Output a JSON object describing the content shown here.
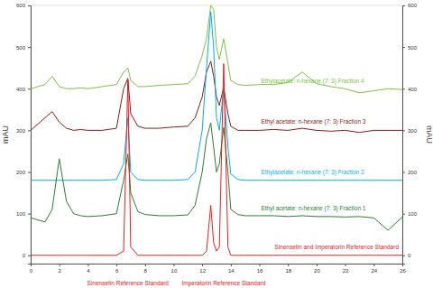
{
  "chart_data": {
    "type": "line",
    "y_label": "mAU",
    "y2_label": "mAU",
    "x": [
      0,
      1,
      1.5,
      2,
      2.5,
      3,
      3.5,
      4,
      5,
      6,
      6.5,
      6.8,
      7,
      7.5,
      8,
      9,
      10,
      11,
      11.5,
      12,
      12.3,
      12.6,
      12.8,
      13,
      13.2,
      13.5,
      13.8,
      14,
      14.5,
      15,
      16,
      17,
      18,
      19,
      20,
      21,
      22,
      23,
      24,
      25,
      26
    ],
    "xlim": [
      0,
      26
    ],
    "xticks": [
      0,
      2,
      4,
      6,
      8,
      10,
      12,
      14,
      16,
      18,
      20,
      22,
      24,
      26
    ],
    "ylim": [
      -20,
      600
    ],
    "yticks": [
      0,
      100,
      200,
      300,
      400,
      500,
      600
    ],
    "y2lim": [
      -20,
      600
    ],
    "y2ticks": [
      0,
      100,
      200,
      300,
      400,
      500,
      600
    ],
    "series": [
      {
        "name": "Ethylacetate: n-hexane (7: 3) Fraction 4",
        "color": "#7dc242",
        "values": [
          400,
          410,
          430,
          405,
          400,
          400,
          402,
          400,
          405,
          410,
          440,
          450,
          420,
          405,
          405,
          408,
          410,
          412,
          430,
          480,
          520,
          600,
          590,
          500,
          470,
          520,
          460,
          420,
          410,
          408,
          410,
          410,
          415,
          440,
          412,
          405,
          400,
          390,
          395,
          400,
          398
        ]
      },
      {
        "name": "Ethyl acetate: n-hexane (7: 3) Fraction 3",
        "color": "#8b1a1a",
        "values": [
          300,
          330,
          345,
          320,
          305,
          300,
          302,
          300,
          300,
          305,
          400,
          425,
          340,
          310,
          305,
          305,
          308,
          310,
          330,
          380,
          440,
          466,
          430,
          380,
          360,
          403,
          340,
          310,
          300,
          300,
          300,
          302,
          300,
          305,
          300,
          298,
          300,
          295,
          300,
          300,
          300
        ]
      },
      {
        "name": "Ethylacetate: n-hexane (7: 3) Fraction 2",
        "color": "#00aeef",
        "values": [
          180,
          180,
          180,
          180,
          180,
          180,
          180,
          180,
          180,
          182,
          220,
          330,
          200,
          182,
          180,
          180,
          180,
          182,
          200,
          300,
          450,
          585,
          500,
          330,
          300,
          403,
          260,
          195,
          182,
          180,
          180,
          180,
          180,
          180,
          180,
          180,
          180,
          180,
          180,
          180,
          180
        ]
      },
      {
        "name": "Ethyl acetate: n-hexane (7: 3) Fraction 1",
        "color": "#2e7d32",
        "values": [
          90,
          80,
          110,
          232,
          130,
          100,
          95,
          93,
          95,
          100,
          180,
          243,
          150,
          105,
          98,
          95,
          95,
          97,
          120,
          200,
          280,
          318,
          260,
          200,
          220,
          307,
          200,
          110,
          98,
          95,
          95,
          95,
          93,
          95,
          93,
          93,
          92,
          93,
          90,
          60,
          92
        ]
      },
      {
        "name": "Sinensetin and Imperatorin Reference Standard",
        "color": "#e8201e",
        "axis": "y2",
        "values": [
          0,
          0,
          0,
          0,
          0,
          0,
          0,
          0,
          0,
          0,
          10,
          420,
          20,
          0,
          0,
          0,
          0,
          0,
          0,
          0,
          10,
          120,
          30,
          10,
          20,
          460,
          20,
          0,
          0,
          0,
          0,
          0,
          0,
          0,
          0,
          0,
          0,
          0,
          0,
          0,
          0
        ]
      }
    ],
    "annotations": [
      {
        "text": "Sinensetin Reference Standard",
        "x": 6.8
      },
      {
        "text": "Imperatorin Reference Standard",
        "x": 13.5
      }
    ]
  }
}
